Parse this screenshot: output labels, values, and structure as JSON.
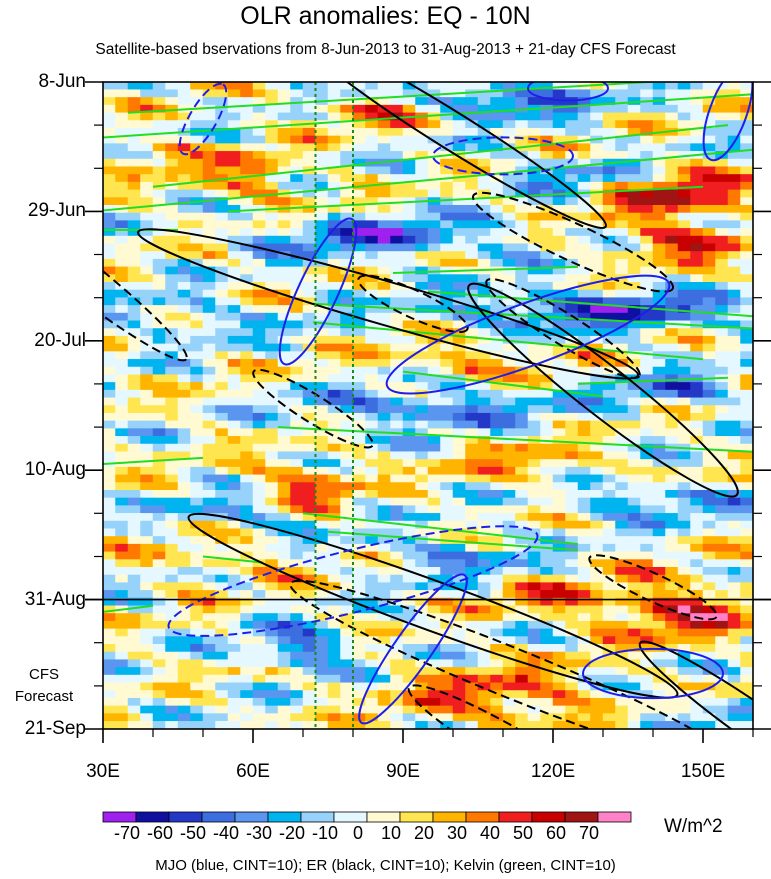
{
  "chart_data": {
    "type": "heatmap",
    "title": "OLR anomalies: EQ - 10N",
    "subtitle": "Satellite-based bservations from 8-Jun-2013 to 31-Aug-2013 + 21-day CFS Forecast",
    "x_axis": {
      "range": [
        30,
        160
      ],
      "ticks": [
        30,
        60,
        90,
        120,
        150
      ],
      "tick_labels": [
        "30E",
        "60E",
        "90E",
        "120E",
        "150E"
      ]
    },
    "y_axis": {
      "range_days": [
        0,
        105
      ],
      "direction": "time increases downward",
      "ticks": [
        0,
        21,
        42,
        63,
        84,
        105
      ],
      "tick_labels": [
        "8-Jun",
        "29-Jun",
        "20-Jul",
        "10-Aug",
        "31-Aug",
        "21-Sep"
      ]
    },
    "forecast_start_day": 84,
    "forecast_label": [
      "CFS",
      "Forecast"
    ],
    "reference_lines_lon": [
      72.5,
      80
    ],
    "colorbar": {
      "levels": [
        -70,
        -60,
        -50,
        -40,
        -30,
        -20,
        -10,
        0,
        10,
        20,
        30,
        40,
        50,
        60,
        70
      ],
      "tick_labels": [
        "-70",
        "-60",
        "-50",
        "-40",
        "-30",
        "-20",
        "-10",
        "0",
        "10",
        "20",
        "30",
        "40",
        "50",
        "60",
        "70"
      ],
      "colors": [
        "#a020f0",
        "#1010a0",
        "#2438c8",
        "#3c6ee0",
        "#5a96f0",
        "#00b4f0",
        "#96d2fa",
        "#e6f8ff",
        "#fffad2",
        "#ffe650",
        "#ffb400",
        "#ff7800",
        "#f01e1e",
        "#c80000",
        "#a01414",
        "#ff82c8"
      ],
      "units": "W/m^2"
    },
    "contour_legend": "MJO (blue, CINT=10); ER (black, CINT=10); Kelvin (green, CINT=10)",
    "series": [
      {
        "name": "MJO",
        "color": "#1e1eeb"
      },
      {
        "name": "ER",
        "color": "#000000"
      },
      {
        "name": "Kelvin",
        "color": "#22dd22"
      }
    ],
    "contours": {
      "mjo": [
        {
          "lon": 50,
          "day": 6,
          "a": 8,
          "b": 2.2,
          "deg": -60,
          "sign": -1
        },
        {
          "lon": 110,
          "day": 12,
          "a": 14,
          "b": 3,
          "deg": 0,
          "sign": -1
        },
        {
          "lon": 73,
          "day": 34,
          "a": 16,
          "b": 3.2,
          "deg": -65,
          "sign": 1
        },
        {
          "lon": 115,
          "day": 41,
          "a": 30,
          "b": 5,
          "deg": -20,
          "sign": 1
        },
        {
          "lon": 123,
          "day": 1,
          "a": 8,
          "b": 2,
          "deg": 0,
          "sign": 1
        },
        {
          "lon": 155,
          "day": 5,
          "a": 10,
          "b": 3,
          "deg": -70,
          "sign": 1
        },
        {
          "lon": 80,
          "day": 81,
          "a": 38,
          "b": 5,
          "deg": -14,
          "sign": -1
        },
        {
          "lon": 92,
          "day": 92,
          "a": 18,
          "b": 3,
          "deg": -55,
          "sign": 1
        },
        {
          "lon": 140,
          "day": 96,
          "a": 14,
          "b": 4,
          "deg": 0,
          "sign": 1
        }
      ],
      "er": [
        {
          "lon": 100,
          "day": 8,
          "a": 36,
          "b": 3,
          "deg": 32,
          "sign": 1
        },
        {
          "lon": 23,
          "day": 30,
          "a": 30,
          "b": 3,
          "deg": 38,
          "sign": -1
        },
        {
          "lon": 87,
          "day": 36,
          "a": 52,
          "b": 3.5,
          "deg": 16,
          "sign": 1
        },
        {
          "lon": 124,
          "day": 26,
          "a": 22,
          "b": 3,
          "deg": 25,
          "sign": -1
        },
        {
          "lon": 92,
          "day": 36,
          "a": 12,
          "b": 2.2,
          "deg": 25,
          "sign": -1
        },
        {
          "lon": 122,
          "day": 40,
          "a": 18,
          "b": 2.5,
          "deg": 32,
          "sign": -1
        },
        {
          "lon": 72,
          "day": 53,
          "a": 14,
          "b": 2.2,
          "deg": 32,
          "sign": -1
        },
        {
          "lon": 130,
          "day": 50,
          "a": 34,
          "b": 4,
          "deg": 38,
          "sign": 1
        },
        {
          "lon": 96,
          "day": 85,
          "a": 52,
          "b": 4,
          "deg": 20,
          "sign": 1
        },
        {
          "lon": 112,
          "day": 96,
          "a": 48,
          "b": 4,
          "deg": 22,
          "sign": -1
        },
        {
          "lon": 140,
          "day": 82,
          "a": 14,
          "b": 2.2,
          "deg": 25,
          "sign": -1
        },
        {
          "lon": 112,
          "day": 108,
          "a": 24,
          "b": 3,
          "deg": 30,
          "sign": -1
        },
        {
          "lon": 162,
          "day": 105,
          "a": 30,
          "b": 3,
          "deg": 35,
          "sign": 1
        }
      ],
      "kelvin": [
        {
          "x1": 35,
          "d1": 5,
          "x2": 160,
          "d2": -1,
          "sign": 1
        },
        {
          "x1": 30,
          "d1": 9,
          "x2": 160,
          "d2": 2,
          "sign": 1
        },
        {
          "x1": 40,
          "d1": 17,
          "x2": 155,
          "d2": 7,
          "sign": 1
        },
        {
          "x1": 28,
          "d1": 21,
          "x2": 160,
          "d2": 11,
          "sign": 1
        },
        {
          "x1": 55,
          "d1": 21,
          "x2": 150,
          "d2": 17,
          "sign": 1
        },
        {
          "x1": 30,
          "d1": 24,
          "x2": 45,
          "d2": 24,
          "sign": 1
        },
        {
          "x1": 88,
          "d1": 31,
          "x2": 125,
          "d2": 30,
          "sign": 1
        },
        {
          "x1": 72,
          "d1": 36,
          "x2": 160,
          "d2": 40,
          "sign": 1
        },
        {
          "x1": 72,
          "d1": 39,
          "x2": 150,
          "d2": 45,
          "sign": 1
        },
        {
          "x1": 95,
          "d1": 34,
          "x2": 160,
          "d2": 38,
          "sign": 1
        },
        {
          "x1": 125,
          "d1": 49,
          "x2": 155,
          "d2": 48,
          "sign": 1
        },
        {
          "x1": 65,
          "d1": 56,
          "x2": 160,
          "d2": 60,
          "sign": 1
        },
        {
          "x1": 30,
          "d1": 62,
          "x2": 50,
          "d2": 61,
          "sign": 1
        },
        {
          "x1": 70,
          "d1": 70,
          "x2": 125,
          "d2": 75,
          "sign": 1
        },
        {
          "x1": 75,
          "d1": 73,
          "x2": 125,
          "d2": 76,
          "sign": 1
        },
        {
          "x1": 30,
          "d1": 86,
          "x2": 40,
          "d2": 85,
          "sign": 1
        },
        {
          "x1": 50,
          "d1": 77,
          "x2": 62,
          "d2": 78,
          "sign": 1
        },
        {
          "x1": 90,
          "d1": 47,
          "x2": 130,
          "d2": 51,
          "sign": 1
        }
      ]
    },
    "anomaly_features": [
      {
        "lon": 85,
        "day": 25,
        "sx": 26,
        "sy": 3,
        "amp": -45
      },
      {
        "lon": 130,
        "day": 37,
        "sx": 30,
        "sy": 3,
        "amp": -55
      },
      {
        "lon": 110,
        "day": 3,
        "sx": 18,
        "sy": 2.5,
        "amp": -55
      },
      {
        "lon": 95,
        "day": 53,
        "sx": 22,
        "sy": 3,
        "amp": -45
      },
      {
        "lon": 70,
        "day": 92,
        "sx": 9,
        "sy": 3,
        "amp": -55
      },
      {
        "lon": 145,
        "day": 50,
        "sx": 14,
        "sy": 2.5,
        "amp": -40
      },
      {
        "lon": 60,
        "day": 70,
        "sx": 14,
        "sy": 3,
        "amp": -30
      },
      {
        "lon": 140,
        "day": 68,
        "sx": 16,
        "sy": 3,
        "amp": -35
      },
      {
        "lon": 100,
        "day": 77,
        "sx": 16,
        "sy": 3,
        "amp": -30
      },
      {
        "lon": 45,
        "day": 38,
        "sx": 14,
        "sy": 3,
        "amp": -25
      },
      {
        "lon": 125,
        "day": 15,
        "sx": 16,
        "sy": 2.5,
        "amp": -30
      },
      {
        "lon": 150,
        "day": 103,
        "sx": 12,
        "sy": 3,
        "amp": -25
      },
      {
        "lon": 145,
        "day": 18,
        "sx": 14,
        "sy": 4,
        "amp": 55
      },
      {
        "lon": 145,
        "day": 26,
        "sx": 12,
        "sy": 3,
        "amp": 50
      },
      {
        "lon": 145,
        "day": 86,
        "sx": 14,
        "sy": 5,
        "amp": 50
      },
      {
        "lon": 70,
        "day": 66,
        "sx": 10,
        "sy": 4,
        "amp": 45
      },
      {
        "lon": 60,
        "day": 16,
        "sx": 10,
        "sy": 4,
        "amp": 35
      },
      {
        "lon": 85,
        "day": 5,
        "sx": 14,
        "sy": 3,
        "amp": 30
      },
      {
        "lon": 100,
        "day": 45,
        "sx": 16,
        "sy": 3,
        "amp": 30
      },
      {
        "lon": 115,
        "day": 62,
        "sx": 16,
        "sy": 3,
        "amp": 25
      },
      {
        "lon": 110,
        "day": 100,
        "sx": 20,
        "sy": 5,
        "amp": 40
      },
      {
        "lon": 55,
        "day": 78,
        "sx": 16,
        "sy": 3,
        "amp": 20
      },
      {
        "lon": 42,
        "day": 12,
        "sx": 10,
        "sy": 3,
        "amp": 25
      },
      {
        "lon": 120,
        "day": 84,
        "sx": 14,
        "sy": 3,
        "amp": 30
      }
    ]
  }
}
